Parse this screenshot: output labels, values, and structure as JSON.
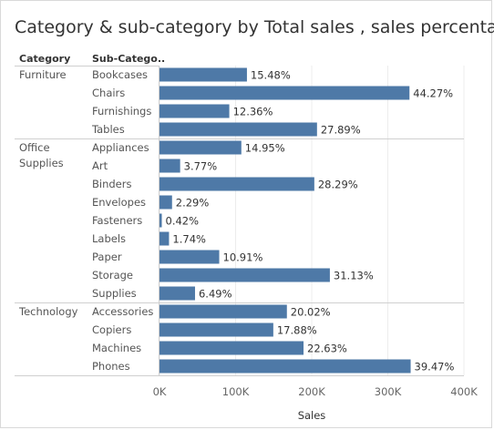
{
  "title": "Category & sub-category by Total sales , sales percentage",
  "headers": {
    "category": "Category",
    "subcategory": "Sub-Catego.."
  },
  "chart_data": {
    "type": "bar",
    "orientation": "horizontal",
    "title": "Category & sub-category by Total sales , sales percentage",
    "xlabel": "Sales",
    "xlim": [
      0,
      400000
    ],
    "x_ticks": [
      "0K",
      "100K",
      "200K",
      "300K",
      "400K"
    ],
    "grid": true,
    "bar_color": "#4e79a7",
    "groups": [
      {
        "category": "Furniture",
        "category_lines": [
          "Furniture"
        ],
        "items": [
          {
            "name": "Bookcases",
            "value": 114880,
            "label": "15.48%"
          },
          {
            "name": "Chairs",
            "value": 328449,
            "label": "44.27%"
          },
          {
            "name": "Furnishings",
            "value": 91705,
            "label": "12.36%"
          },
          {
            "name": "Tables",
            "value": 206966,
            "label": "27.89%"
          }
        ]
      },
      {
        "category": "Office Supplies",
        "category_lines": [
          "Office",
          "Supplies"
        ],
        "items": [
          {
            "name": "Appliances",
            "value": 107532,
            "label": "14.95%"
          },
          {
            "name": "Art",
            "value": 27119,
            "label": "3.77%"
          },
          {
            "name": "Binders",
            "value": 203413,
            "label": "28.29%"
          },
          {
            "name": "Envelopes",
            "value": 16476,
            "label": "2.29%"
          },
          {
            "name": "Fasteners",
            "value": 3024,
            "label": "0.42%"
          },
          {
            "name": "Labels",
            "value": 12486,
            "label": "1.74%"
          },
          {
            "name": "Paper",
            "value": 78479,
            "label": "10.91%"
          },
          {
            "name": "Storage",
            "value": 223844,
            "label": "31.13%"
          },
          {
            "name": "Supplies",
            "value": 46674,
            "label": "6.49%"
          }
        ]
      },
      {
        "category": "Technology",
        "category_lines": [
          "Technology"
        ],
        "items": [
          {
            "name": "Accessories",
            "value": 167380,
            "label": "20.02%"
          },
          {
            "name": "Copiers",
            "value": 149528,
            "label": "17.88%"
          },
          {
            "name": "Machines",
            "value": 189239,
            "label": "22.63%"
          },
          {
            "name": "Phones",
            "value": 330007,
            "label": "39.47%"
          }
        ]
      }
    ]
  }
}
